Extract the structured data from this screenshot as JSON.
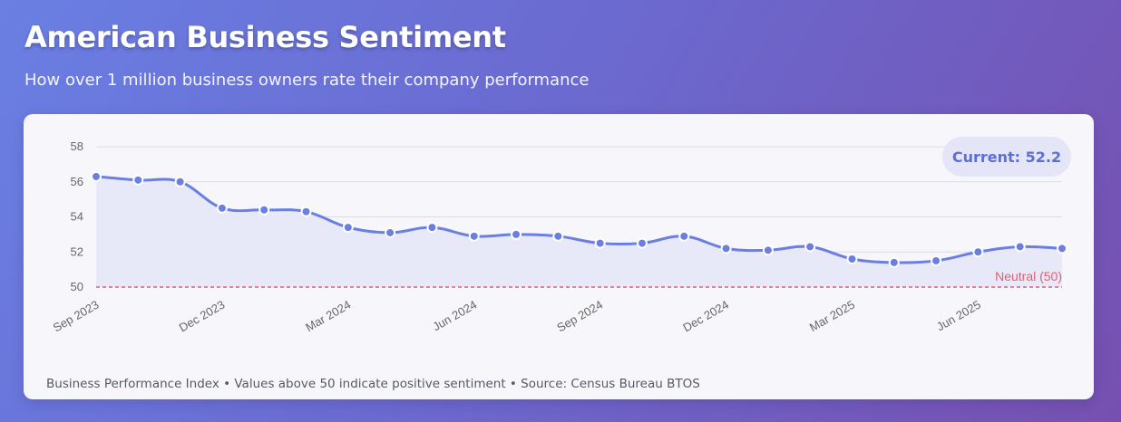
{
  "header": {
    "title": "American Business Sentiment",
    "subtitle": "How over 1 million business owners rate their company performance"
  },
  "badge": {
    "label": "Current: 52.2"
  },
  "footnote": "Business Performance Index • Values above 50 indicate positive sentiment • Source: Census Bureau BTOS",
  "colors": {
    "line": "#6a7fe0",
    "fill": "#e6e8f7",
    "reference": "#e06070",
    "grid": "#dcdce6"
  },
  "chart_data": {
    "type": "area",
    "title": "",
    "xlabel": "",
    "ylabel": "",
    "ylim": [
      50,
      58
    ],
    "yticks": [
      50,
      52,
      54,
      56,
      58
    ],
    "grid": true,
    "x": [
      "Sep 2023",
      "Oct 2023",
      "Nov 2023",
      "Dec 2023",
      "Jan 2024",
      "Feb 2024",
      "Mar 2024",
      "Apr 2024",
      "May 2024",
      "Jun 2024",
      "Jul 2024",
      "Aug 2024",
      "Sep 2024",
      "Oct 2024",
      "Nov 2024",
      "Dec 2024",
      "Jan 2025",
      "Feb 2025",
      "Mar 2025",
      "Apr 2025",
      "May 2025",
      "Jun 2025",
      "Jul 2025",
      "Aug 2025"
    ],
    "xtick_labels": [
      "Sep 2023",
      "Dec 2023",
      "Mar 2024",
      "Jun 2024",
      "Sep 2024",
      "Dec 2024",
      "Mar 2025",
      "Jun 2025"
    ],
    "series": [
      {
        "values": [
          56.3,
          56.1,
          56.0,
          54.5,
          54.4,
          54.3,
          53.4,
          53.1,
          53.4,
          52.9,
          53.0,
          52.9,
          52.5,
          52.5,
          52.9,
          52.2,
          52.1,
          52.3,
          51.6,
          51.4,
          51.5,
          52.0,
          52.3,
          52.2
        ]
      }
    ],
    "reference_line": {
      "value": 50,
      "label": "Neutral (50)"
    }
  }
}
